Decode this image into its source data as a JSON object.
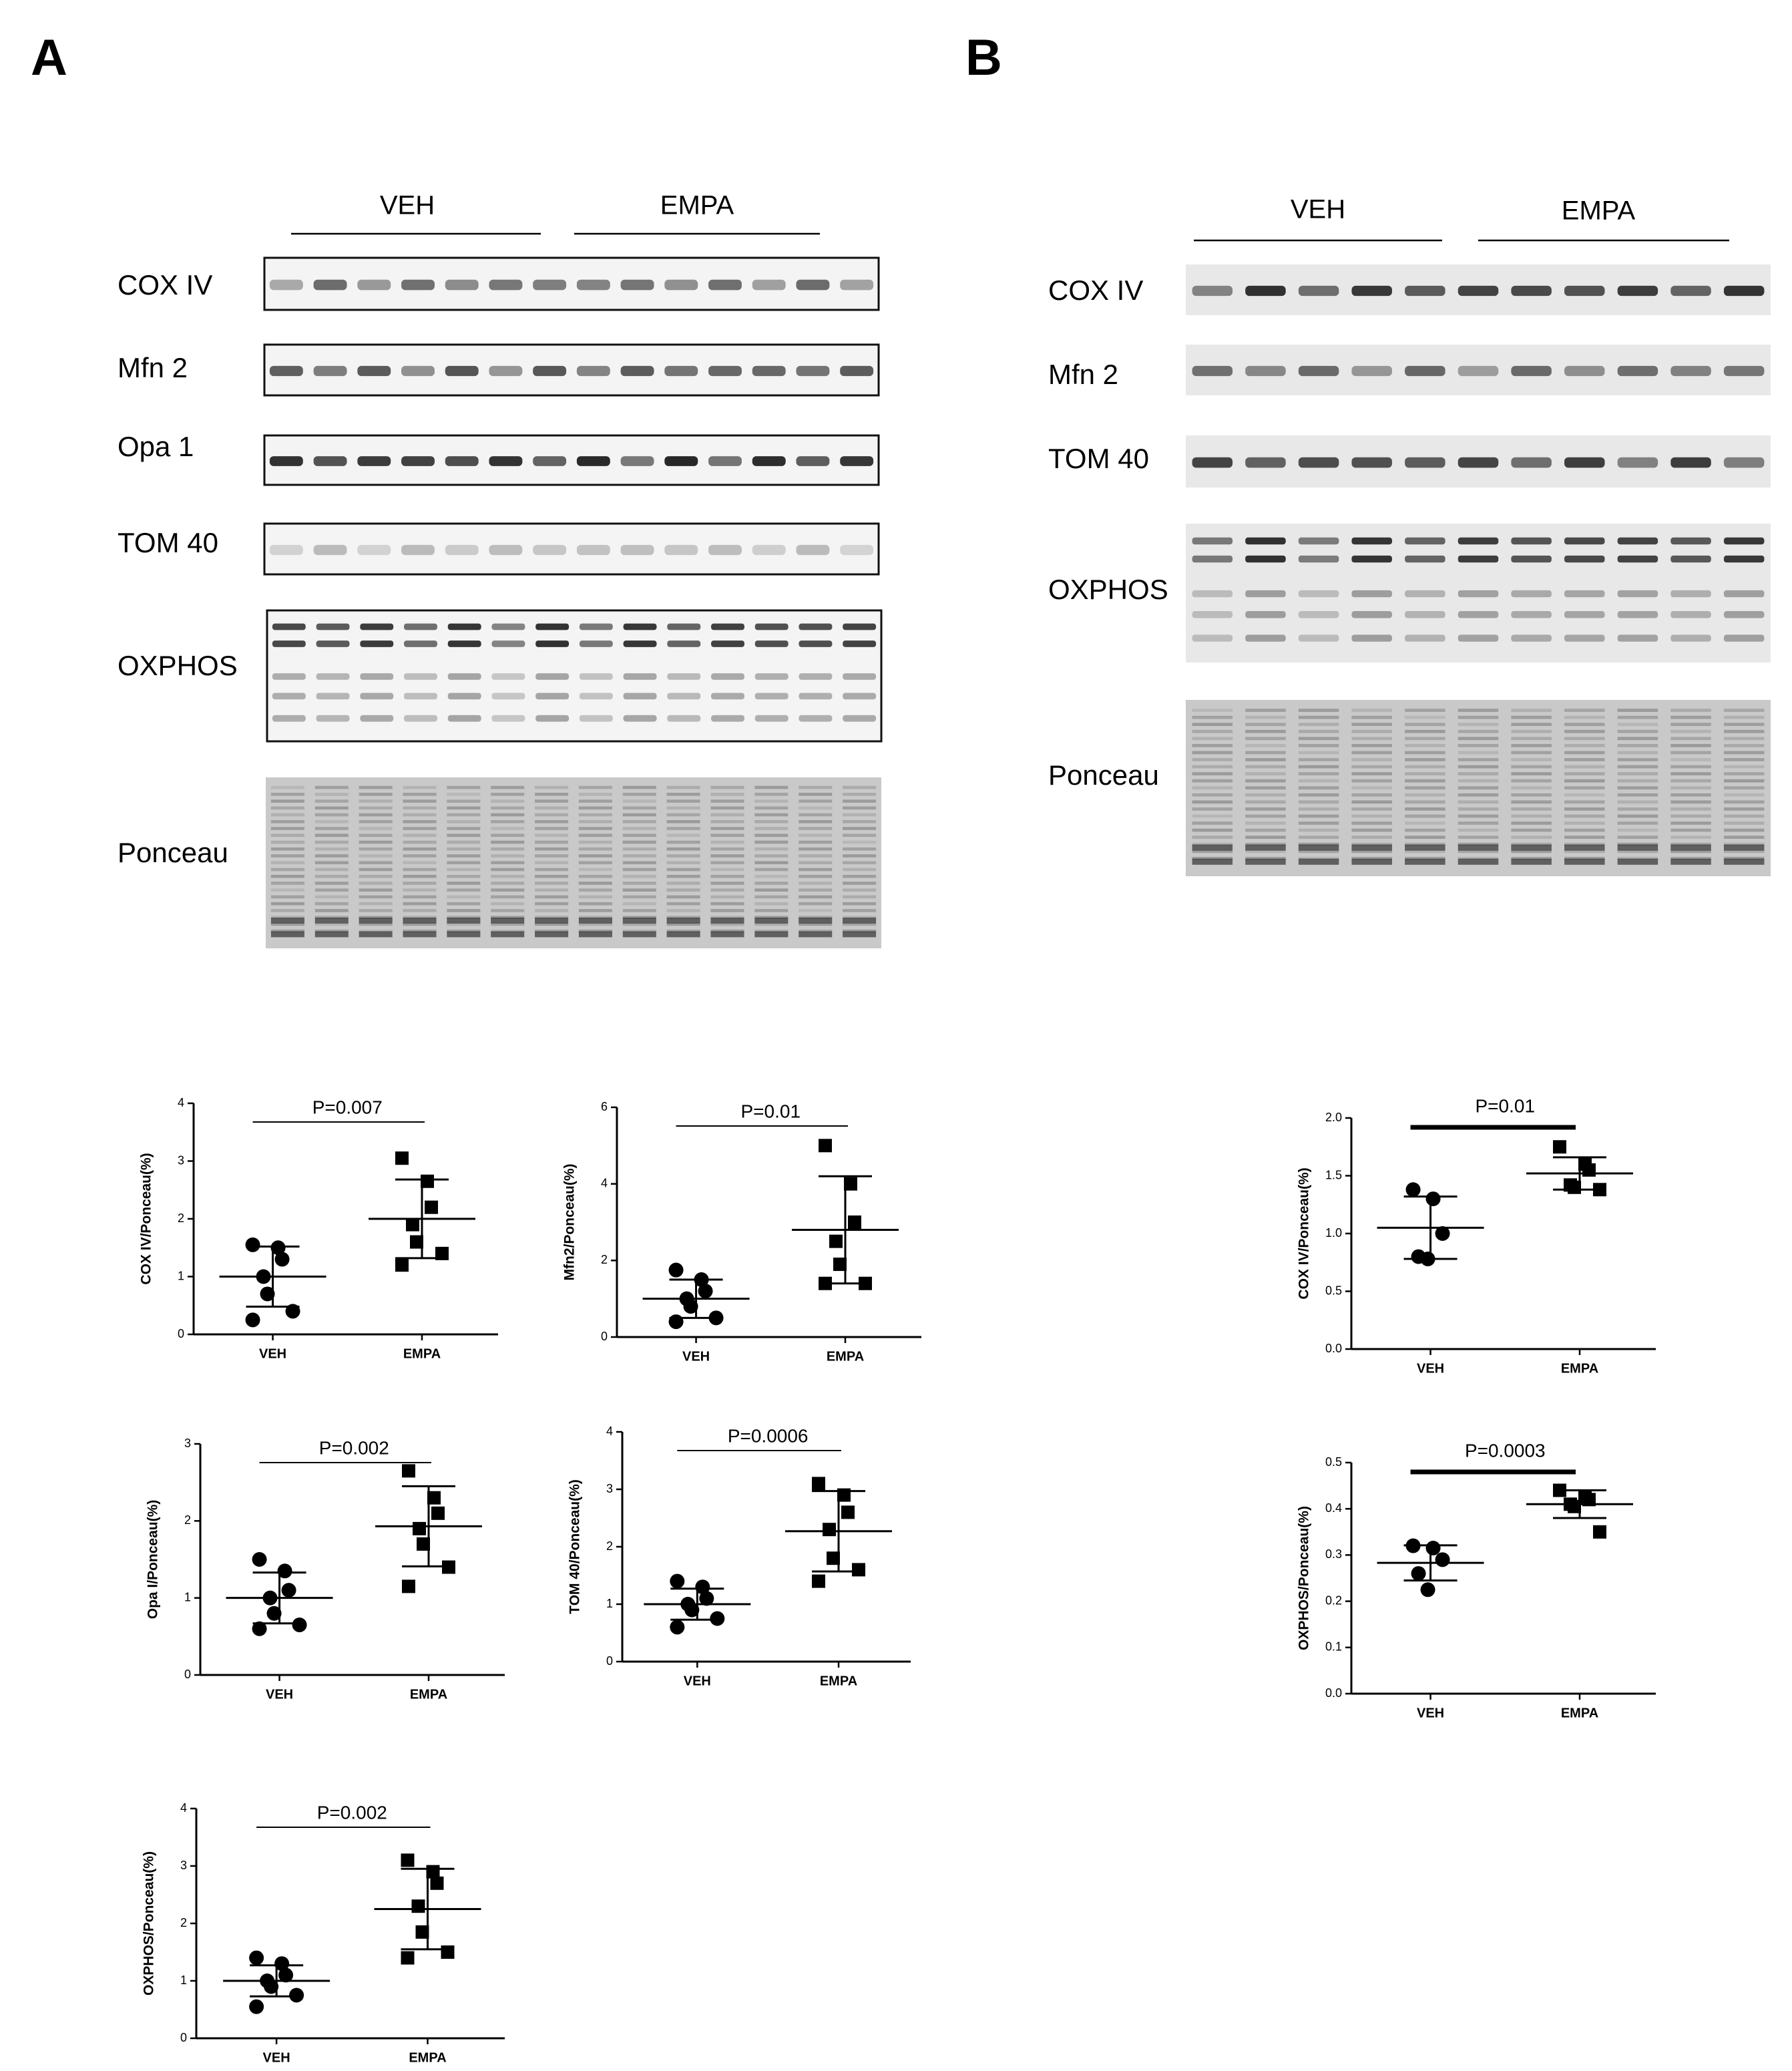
{
  "panels": [
    {
      "label": "A",
      "groups": [
        "VEH",
        "EMPA"
      ],
      "rows": [
        "COX IV",
        "Mfn 2",
        "Opa 1",
        "TOM 40",
        "OXPHOS",
        "Ponceau"
      ]
    },
    {
      "label": "B",
      "groups": [
        "VEH",
        "EMPA"
      ],
      "rows": [
        "COX IV",
        "Mfn 2",
        "TOM 40",
        "OXPHOS",
        "Ponceau"
      ]
    }
  ],
  "chart_data": [
    {
      "type": "scatter",
      "y_label": "COX IV/Ponceau(%)",
      "annotation": "P=0.007",
      "categories": [
        "VEH",
        "EMPA"
      ],
      "ylim": [
        0,
        4
      ],
      "yticks": [
        0,
        1,
        2,
        3,
        4
      ],
      "groups": [
        {
          "marker": "circle",
          "values": [
            1.55,
            1.5,
            1.3,
            1.0,
            0.7,
            0.4,
            0.25
          ],
          "mean": 1.0,
          "sd": 0.52
        },
        {
          "marker": "square",
          "values": [
            3.05,
            2.65,
            2.2,
            1.9,
            1.6,
            1.4,
            1.2
          ],
          "mean": 2.0,
          "sd": 0.68
        }
      ]
    },
    {
      "type": "scatter",
      "y_label": "Mfn2/Ponceau(%)",
      "annotation": "P=0.01",
      "categories": [
        "VEH",
        "EMPA"
      ],
      "ylim": [
        0,
        6
      ],
      "yticks": [
        0,
        2,
        4,
        6
      ],
      "groups": [
        {
          "marker": "circle",
          "values": [
            1.75,
            1.5,
            1.2,
            1.0,
            0.8,
            0.5,
            0.4
          ],
          "mean": 1.0,
          "sd": 0.5
        },
        {
          "marker": "square",
          "values": [
            5.0,
            4.0,
            3.0,
            2.5,
            1.9,
            1.4,
            1.4
          ],
          "mean": 2.8,
          "sd": 1.4
        }
      ]
    },
    {
      "type": "scatter",
      "y_label": "Opa I/Ponceau(%)",
      "annotation": "P=0.002",
      "categories": [
        "VEH",
        "EMPA"
      ],
      "ylim": [
        0,
        3
      ],
      "yticks": [
        0,
        1,
        2,
        3
      ],
      "groups": [
        {
          "marker": "circle",
          "values": [
            1.5,
            1.35,
            1.1,
            1.0,
            0.8,
            0.65,
            0.6
          ],
          "mean": 1.0,
          "sd": 0.33
        },
        {
          "marker": "square",
          "values": [
            2.65,
            2.3,
            2.1,
            1.9,
            1.7,
            1.4,
            1.15
          ],
          "mean": 1.93,
          "sd": 0.52
        }
      ]
    },
    {
      "type": "scatter",
      "y_label": "TOM 40/Ponceau(%)",
      "annotation": "P=0.0006",
      "categories": [
        "VEH",
        "EMPA"
      ],
      "ylim": [
        0,
        4
      ],
      "yticks": [
        0,
        1,
        2,
        3,
        4
      ],
      "groups": [
        {
          "marker": "circle",
          "values": [
            1.4,
            1.3,
            1.1,
            1.0,
            0.9,
            0.75,
            0.6
          ],
          "mean": 1.0,
          "sd": 0.27
        },
        {
          "marker": "square",
          "values": [
            3.1,
            2.9,
            2.6,
            2.3,
            1.8,
            1.6,
            1.4
          ],
          "mean": 2.27,
          "sd": 0.7
        }
      ]
    },
    {
      "type": "scatter",
      "y_label": "OXPHOS/Ponceau(%)",
      "annotation": "P=0.002",
      "categories": [
        "VEH",
        "EMPA"
      ],
      "ylim": [
        0,
        4
      ],
      "yticks": [
        0,
        1,
        2,
        3,
        4
      ],
      "groups": [
        {
          "marker": "circle",
          "values": [
            1.4,
            1.3,
            1.1,
            1.0,
            0.9,
            0.75,
            0.55
          ],
          "mean": 1.0,
          "sd": 0.27
        },
        {
          "marker": "square",
          "values": [
            3.1,
            2.9,
            2.7,
            2.3,
            1.85,
            1.5,
            1.4
          ],
          "mean": 2.25,
          "sd": 0.7
        }
      ]
    },
    {
      "type": "scatter",
      "y_label": "COX IV/Ponceau(%)",
      "annotation": "P=0.01",
      "categories": [
        "VEH",
        "EMPA"
      ],
      "ylim": [
        0,
        2
      ],
      "yticks": [
        {
          "value": 0,
          "label": "0.0"
        },
        0.5,
        {
          "value": 1,
          "label": "1.0"
        },
        1.5,
        {
          "value": 2,
          "label": "2.0"
        }
      ],
      "groups": [
        {
          "marker": "circle",
          "values": [
            1.38,
            1.3,
            1.0,
            0.8,
            0.78
          ],
          "mean": 1.05,
          "sd": 0.27
        },
        {
          "marker": "square",
          "values": [
            1.75,
            1.6,
            1.55,
            1.42,
            1.4,
            1.38
          ],
          "mean": 1.52,
          "sd": 0.14
        }
      ]
    },
    {
      "type": "scatter",
      "y_label": "OXPHOS/Ponceau(%)",
      "annotation": "P=0.0003",
      "categories": [
        "VEH",
        "EMPA"
      ],
      "ylim": [
        0,
        0.5
      ],
      "yticks": [
        {
          "value": 0,
          "label": "0.0"
        },
        0.1,
        0.2,
        0.3,
        0.4,
        0.5
      ],
      "groups": [
        {
          "marker": "circle",
          "values": [
            0.32,
            0.315,
            0.29,
            0.26,
            0.225
          ],
          "mean": 0.283,
          "sd": 0.038
        },
        {
          "marker": "square",
          "values": [
            0.44,
            0.425,
            0.42,
            0.41,
            0.405,
            0.35
          ],
          "mean": 0.41,
          "sd": 0.03
        }
      ]
    }
  ]
}
